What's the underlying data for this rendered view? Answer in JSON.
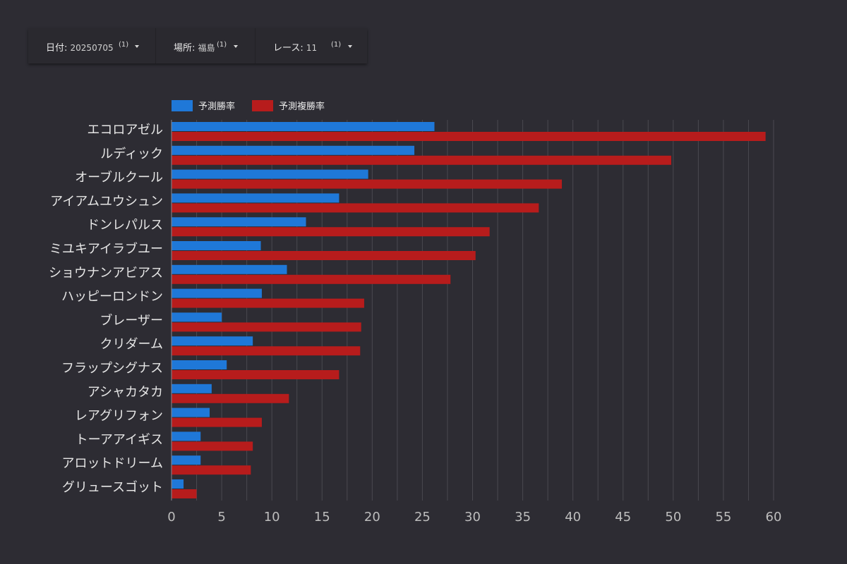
{
  "filters": [
    {
      "label": "日付",
      "value": "20250705",
      "count": "(1)"
    },
    {
      "label": "場所",
      "value": "福島",
      "count": "(1)"
    },
    {
      "label": "レース",
      "value": "11",
      "count": "(1)"
    }
  ],
  "colors": {
    "win": "#1f78d8",
    "place": "#b71c1c",
    "grid": "#4a4950",
    "text": "#e6e6e6",
    "tick": "#bdbdbd"
  },
  "chart_data": {
    "type": "bar",
    "orientation": "horizontal",
    "categories": [
      "エコロアゼル",
      "ルディック",
      "オーブルクール",
      "アイアムユウシュン",
      "ドンレパルス",
      "ミユキアイラブユー",
      "ショウナンアビアス",
      "ハッピーロンドン",
      "ブレーザー",
      "クリダーム",
      "フラップシグナス",
      "アシャカタカ",
      "レアグリフォン",
      "トーアアイギス",
      "アロットドリーム",
      "グリュースゴット"
    ],
    "series": [
      {
        "name": "予測勝率",
        "values": [
          26.2,
          24.2,
          19.6,
          16.7,
          13.4,
          8.9,
          11.5,
          9.0,
          5.0,
          8.1,
          5.5,
          4.0,
          3.8,
          2.9,
          2.9,
          1.2
        ]
      },
      {
        "name": "予測複勝率",
        "values": [
          59.2,
          49.8,
          38.9,
          36.6,
          31.7,
          30.3,
          27.8,
          19.2,
          18.9,
          18.8,
          16.7,
          11.7,
          9.0,
          8.1,
          7.9,
          2.5
        ]
      }
    ],
    "xticks": [
      "0",
      "5",
      "10",
      "15",
      "20",
      "25",
      "30",
      "35",
      "40",
      "45",
      "50",
      "55",
      "60"
    ],
    "xlim": [
      0,
      60
    ],
    "grid_step": 2.5,
    "grid": true,
    "legend": "top-left"
  }
}
